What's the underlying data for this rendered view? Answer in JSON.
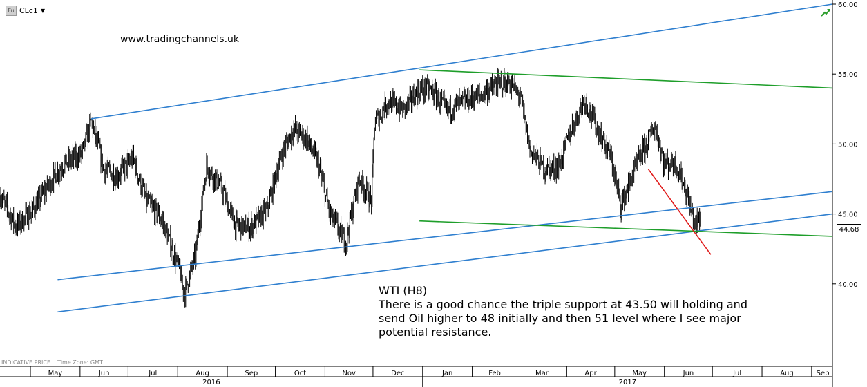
{
  "header": {
    "instrument_code": "Fu",
    "symbol": "CLc1"
  },
  "watermark": "www.tradingchannels.uk",
  "footer": {
    "indicative": "INDICATIVE PRICE",
    "timezone": "Time Zone: GMT"
  },
  "last_price_label": "44.68",
  "icons": {
    "trend": "trend-arrow-icon",
    "menu": "caret-down-icon"
  },
  "colors": {
    "price": "#000000",
    "channel": "#2f7fcf",
    "support": "#1e9e2a",
    "trendline": "#e01a1a",
    "axis": "#000000"
  },
  "annotation": {
    "title": "WTI (H8)",
    "lines": [
      "There is a good chance the triple support at 43.50 will holding and",
      "send Oil higher to 48 initially and then 51 level where I see major",
      "potential resistance."
    ]
  },
  "chart_data": {
    "type": "ohlc",
    "title": "",
    "xlabel": "",
    "ylabel": "",
    "x_range": [
      "2016-04-12",
      "2017-09-14"
    ],
    "ylim": [
      35.0,
      60.0
    ],
    "yticks": [
      40.0,
      45.0,
      50.0,
      55.0,
      60.0
    ],
    "ytick_labels": [
      "40.00",
      "45.00",
      "50.00",
      "55.00",
      "60.00"
    ],
    "month_labels": [
      "May",
      "Jun",
      "Jul",
      "Aug",
      "Sep",
      "Oct",
      "Nov",
      "Dec",
      "Jan",
      "Feb",
      "Mar",
      "Apr",
      "May",
      "Jun",
      "Jul",
      "Aug",
      "Sep"
    ],
    "year_labels": [
      "2016",
      "2017"
    ],
    "last_price": 44.68,
    "price_path": [
      [
        "2016-04-12",
        46.3
      ],
      [
        "2016-04-22",
        44.1
      ],
      [
        "2016-05-02",
        45.2
      ],
      [
        "2016-05-12",
        47.0
      ],
      [
        "2016-05-22",
        48.6
      ],
      [
        "2016-06-02",
        49.3
      ],
      [
        "2016-06-08",
        51.6
      ],
      [
        "2016-06-16",
        48.2
      ],
      [
        "2016-06-24",
        47.7
      ],
      [
        "2016-07-04",
        49.0
      ],
      [
        "2016-07-12",
        46.0
      ],
      [
        "2016-07-22",
        44.6
      ],
      [
        "2016-08-02",
        41.0
      ],
      [
        "2016-08-05",
        39.2
      ],
      [
        "2016-08-12",
        42.0
      ],
      [
        "2016-08-19",
        48.4
      ],
      [
        "2016-08-28",
        46.9
      ],
      [
        "2016-09-06",
        44.2
      ],
      [
        "2016-09-15",
        44.0
      ],
      [
        "2016-09-26",
        45.3
      ],
      [
        "2016-10-04",
        49.0
      ],
      [
        "2016-10-12",
        51.0
      ],
      [
        "2016-10-20",
        50.5
      ],
      [
        "2016-10-28",
        48.5
      ],
      [
        "2016-11-04",
        45.0
      ],
      [
        "2016-11-14",
        43.0
      ],
      [
        "2016-11-22",
        47.5
      ],
      [
        "2016-11-30",
        46.0
      ],
      [
        "2016-12-02",
        51.5
      ],
      [
        "2016-12-10",
        53.0
      ],
      [
        "2016-12-20",
        52.5
      ],
      [
        "2016-12-30",
        53.8
      ],
      [
        "2017-01-06",
        53.9
      ],
      [
        "2017-01-16",
        52.4
      ],
      [
        "2017-01-26",
        53.0
      ],
      [
        "2017-02-06",
        53.5
      ],
      [
        "2017-02-16",
        54.2
      ],
      [
        "2017-02-24",
        54.4
      ],
      [
        "2017-03-03",
        53.4
      ],
      [
        "2017-03-09",
        49.6
      ],
      [
        "2017-03-18",
        48.2
      ],
      [
        "2017-03-27",
        48.4
      ],
      [
        "2017-04-03",
        50.8
      ],
      [
        "2017-04-12",
        53.2
      ],
      [
        "2017-04-20",
        51.2
      ],
      [
        "2017-04-28",
        49.2
      ],
      [
        "2017-05-05",
        45.6
      ],
      [
        "2017-05-12",
        47.8
      ],
      [
        "2017-05-22",
        50.3
      ],
      [
        "2017-05-26",
        51.3
      ],
      [
        "2017-06-01",
        48.6
      ],
      [
        "2017-06-08",
        48.6
      ],
      [
        "2017-06-14",
        46.8
      ],
      [
        "2017-06-20",
        44.2
      ],
      [
        "2017-06-24",
        44.7
      ]
    ],
    "drawn_lines": [
      {
        "name": "",
        "color": "channel",
        "points": [
          [
            "2016-06-08",
            51.8
          ],
          [
            "2017-09-14",
            60.0
          ]
        ]
      },
      {
        "name": "",
        "color": "channel",
        "points": [
          [
            "2016-05-18",
            40.3
          ],
          [
            "2017-09-14",
            46.6
          ]
        ]
      },
      {
        "name": "",
        "color": "channel",
        "points": [
          [
            "2016-05-18",
            38.0
          ],
          [
            "2017-09-14",
            45.0
          ]
        ]
      },
      {
        "name": "",
        "color": "support",
        "points": [
          [
            "2016-12-30",
            55.3
          ],
          [
            "2017-09-14",
            54.0
          ]
        ]
      },
      {
        "name": "",
        "color": "support",
        "points": [
          [
            "2016-12-30",
            44.5
          ],
          [
            "2017-09-14",
            43.4
          ]
        ]
      },
      {
        "name": "",
        "color": "trendline",
        "points": [
          [
            "2017-05-22",
            48.2
          ],
          [
            "2017-06-30",
            42.1
          ]
        ]
      }
    ]
  }
}
